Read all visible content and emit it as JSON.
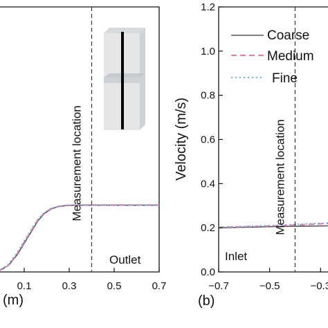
{
  "chart_data": [
    {
      "type": "line",
      "panel": "a (cropped)",
      "title": "",
      "xlabel": "(m)",
      "ylabel": "",
      "xlim": [
        -0.02,
        0.7
      ],
      "ylim": [
        0,
        1.2
      ],
      "x_ticks": [
        {
          "value": 0.1,
          "label": "0.1"
        },
        {
          "value": 0.3,
          "label": "0.3"
        },
        {
          "value": 0.5,
          "label": "0.5"
        },
        {
          "value": 0.7,
          "label": "0.7"
        }
      ],
      "series": [
        {
          "name": "Coarse",
          "color": "#555555",
          "dash": "solid",
          "x": [
            -0.02,
            0.03,
            0.07,
            0.1,
            0.13,
            0.16,
            0.19,
            0.22,
            0.25,
            0.28,
            0.32,
            0.4,
            0.5,
            0.6,
            0.7
          ],
          "y": [
            0.0,
            0.03,
            0.08,
            0.13,
            0.18,
            0.23,
            0.265,
            0.285,
            0.295,
            0.3,
            0.302,
            0.302,
            0.302,
            0.302,
            0.302
          ]
        },
        {
          "name": "Medium",
          "color": "#e07aa6",
          "dash": "dashed",
          "x": [
            -0.02,
            0.03,
            0.07,
            0.1,
            0.13,
            0.16,
            0.19,
            0.22,
            0.25,
            0.28,
            0.32,
            0.4,
            0.5,
            0.6,
            0.7
          ],
          "y": [
            0.0,
            0.03,
            0.085,
            0.135,
            0.185,
            0.235,
            0.268,
            0.287,
            0.296,
            0.301,
            0.303,
            0.303,
            0.303,
            0.303,
            0.303
          ]
        },
        {
          "name": "Fine",
          "color": "#6aa7d8",
          "dash": "dotted",
          "x": [
            -0.02,
            0.03,
            0.07,
            0.1,
            0.13,
            0.16,
            0.19,
            0.22,
            0.25,
            0.28,
            0.32,
            0.4,
            0.5,
            0.6,
            0.7
          ],
          "y": [
            0.0,
            0.035,
            0.09,
            0.14,
            0.19,
            0.238,
            0.27,
            0.288,
            0.297,
            0.301,
            0.303,
            0.303,
            0.303,
            0.303,
            0.303
          ]
        }
      ],
      "vline": {
        "x": 0.4,
        "label": "Measurement location"
      },
      "annotations": [
        {
          "text": "Outlet"
        }
      ]
    },
    {
      "type": "line",
      "panel": "b",
      "panel_label": "(b)",
      "title": "",
      "xlabel": "",
      "ylabel": "Velocity (m/s)",
      "xlim": [
        -0.7,
        -0.26
      ],
      "ylim": [
        0,
        1.2
      ],
      "y_ticks": [
        {
          "value": 0,
          "label": "0.0"
        },
        {
          "value": 0.2,
          "label": "0.2"
        },
        {
          "value": 0.4,
          "label": "0.4"
        },
        {
          "value": 0.6,
          "label": "0.6"
        },
        {
          "value": 0.8,
          "label": "0.8"
        },
        {
          "value": 1.0,
          "label": "1.0"
        },
        {
          "value": 1.2,
          "label": "1.2"
        }
      ],
      "x_ticks": [
        {
          "value": -0.7,
          "label": "−0.7"
        },
        {
          "value": -0.5,
          "label": "−0.5"
        },
        {
          "value": -0.3,
          "label": "−0.3"
        }
      ],
      "series": [
        {
          "name": "Coarse",
          "color": "#555555",
          "dash": "solid",
          "x": [
            -0.7,
            -0.6,
            -0.5,
            -0.4,
            -0.3,
            -0.26
          ],
          "y": [
            0.2,
            0.202,
            0.205,
            0.207,
            0.208,
            0.209
          ]
        },
        {
          "name": "Medium",
          "color": "#e07aa6",
          "dash": "dashed",
          "x": [
            -0.7,
            -0.6,
            -0.5,
            -0.4,
            -0.3,
            -0.26
          ],
          "y": [
            0.202,
            0.205,
            0.208,
            0.212,
            0.218,
            0.22
          ]
        },
        {
          "name": "Fine",
          "color": "#6aa7d8",
          "dash": "dotted",
          "x": [
            -0.7,
            -0.6,
            -0.5,
            -0.4,
            -0.3,
            -0.26
          ],
          "y": [
            0.203,
            0.206,
            0.21,
            0.215,
            0.22,
            0.222
          ]
        }
      ],
      "vline": {
        "x": -0.4,
        "label": "Measurement location"
      },
      "annotations": [
        {
          "text": "Inlet"
        }
      ],
      "legend": {
        "position": "top-right",
        "entries": [
          "Coarse",
          "Medium",
          "Fine"
        ]
      }
    }
  ]
}
